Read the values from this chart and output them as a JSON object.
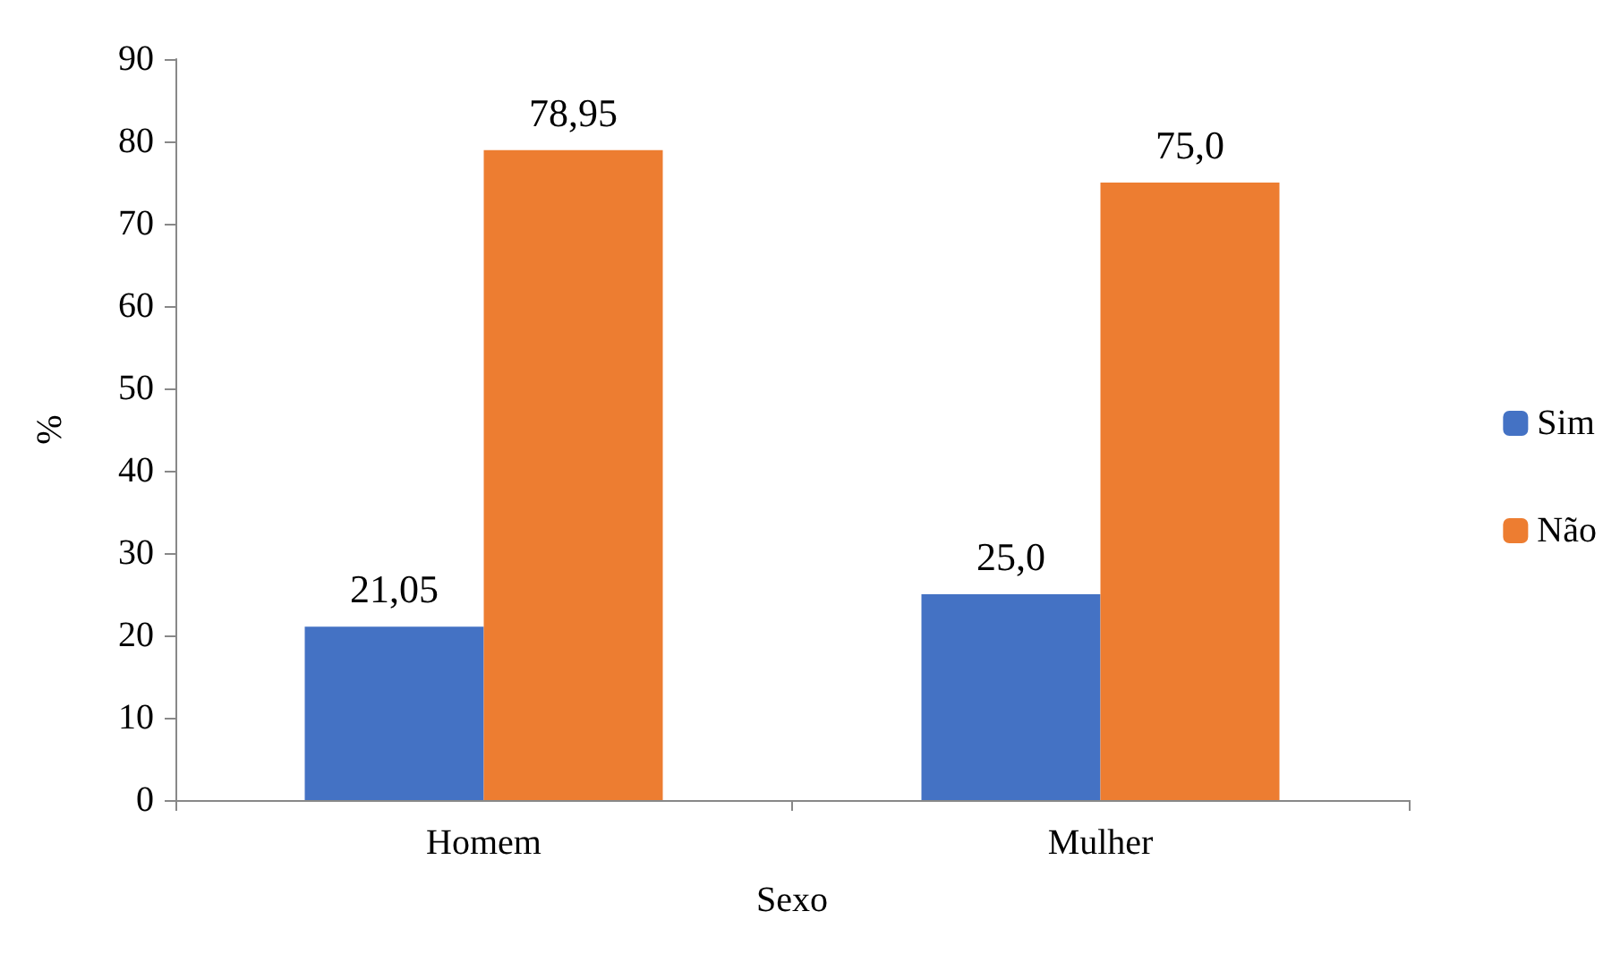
{
  "chart_data": {
    "type": "bar",
    "xlabel": "Sexo",
    "ylabel": "%",
    "categories": [
      "Homem",
      "Mulher"
    ],
    "series": [
      {
        "name": "Sim",
        "color": "#4472c4",
        "values": [
          21.05,
          25.0
        ],
        "value_labels": [
          "21,05",
          "25,0"
        ]
      },
      {
        "name": "Não",
        "color": "#ed7d31",
        "values": [
          78.95,
          75.0
        ],
        "value_labels": [
          "78,95",
          "75,0"
        ]
      }
    ],
    "ylim": [
      0,
      90
    ],
    "yticks": [
      0,
      10,
      20,
      30,
      40,
      50,
      60,
      70,
      80,
      90
    ],
    "grid": false,
    "legend": "right"
  }
}
